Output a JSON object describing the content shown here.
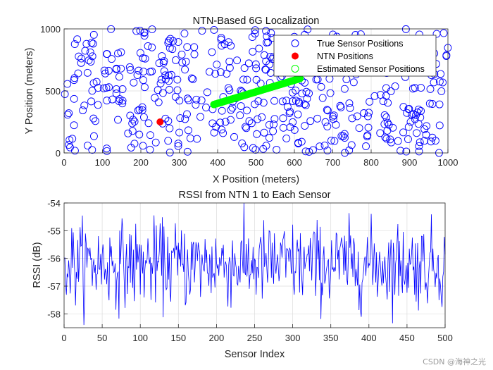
{
  "watermark": "CSDN @海神之光",
  "chart_data": [
    {
      "type": "scatter",
      "title": "NTN-Based 6G Localization",
      "xlabel": "X Position (meters)",
      "ylabel": "Y Position (meters)",
      "xlim": [
        0,
        1000
      ],
      "ylim": [
        0,
        1000
      ],
      "xticks": [
        0,
        100,
        200,
        300,
        400,
        500,
        600,
        700,
        800,
        900,
        1000
      ],
      "yticks": [
        0,
        500,
        1000
      ],
      "grid": true,
      "legend_position": "top-right",
      "series": [
        {
          "name": "True Sensor Positions",
          "marker": "open-circle",
          "color": "#0000ff",
          "count": 500,
          "distribution": "uniform over x 0–1000, y 0–1000"
        },
        {
          "name": "NTN Positions",
          "marker": "filled-circle",
          "color": "#ff0000",
          "points": [
            [
              250,
              250
            ]
          ]
        },
        {
          "name": "Estimated Sensor Positions",
          "marker": "open-circle",
          "color": "#00ff00",
          "line_from": [
            390,
            390
          ],
          "line_to": [
            615,
            600
          ],
          "count": 500
        }
      ],
      "legend": [
        "True Sensor Positions",
        "NTN Positions",
        "Estimated Sensor Positions"
      ]
    },
    {
      "type": "line",
      "title": "RSSI from NTN 1 to Each Sensor",
      "xlabel": "Sensor Index",
      "ylabel": "RSSI (dB)",
      "xlim": [
        0,
        500
      ],
      "ylim": [
        -58.5,
        -54
      ],
      "xticks": [
        0,
        50,
        100,
        150,
        200,
        250,
        300,
        350,
        400,
        450,
        500
      ],
      "yticks": [
        -54,
        -55,
        -56,
        -57,
        -58
      ],
      "grid": true,
      "color": "#0000ff",
      "n_points": 500,
      "mean": -56.2,
      "range": [
        -58.4,
        -54.0
      ]
    }
  ]
}
